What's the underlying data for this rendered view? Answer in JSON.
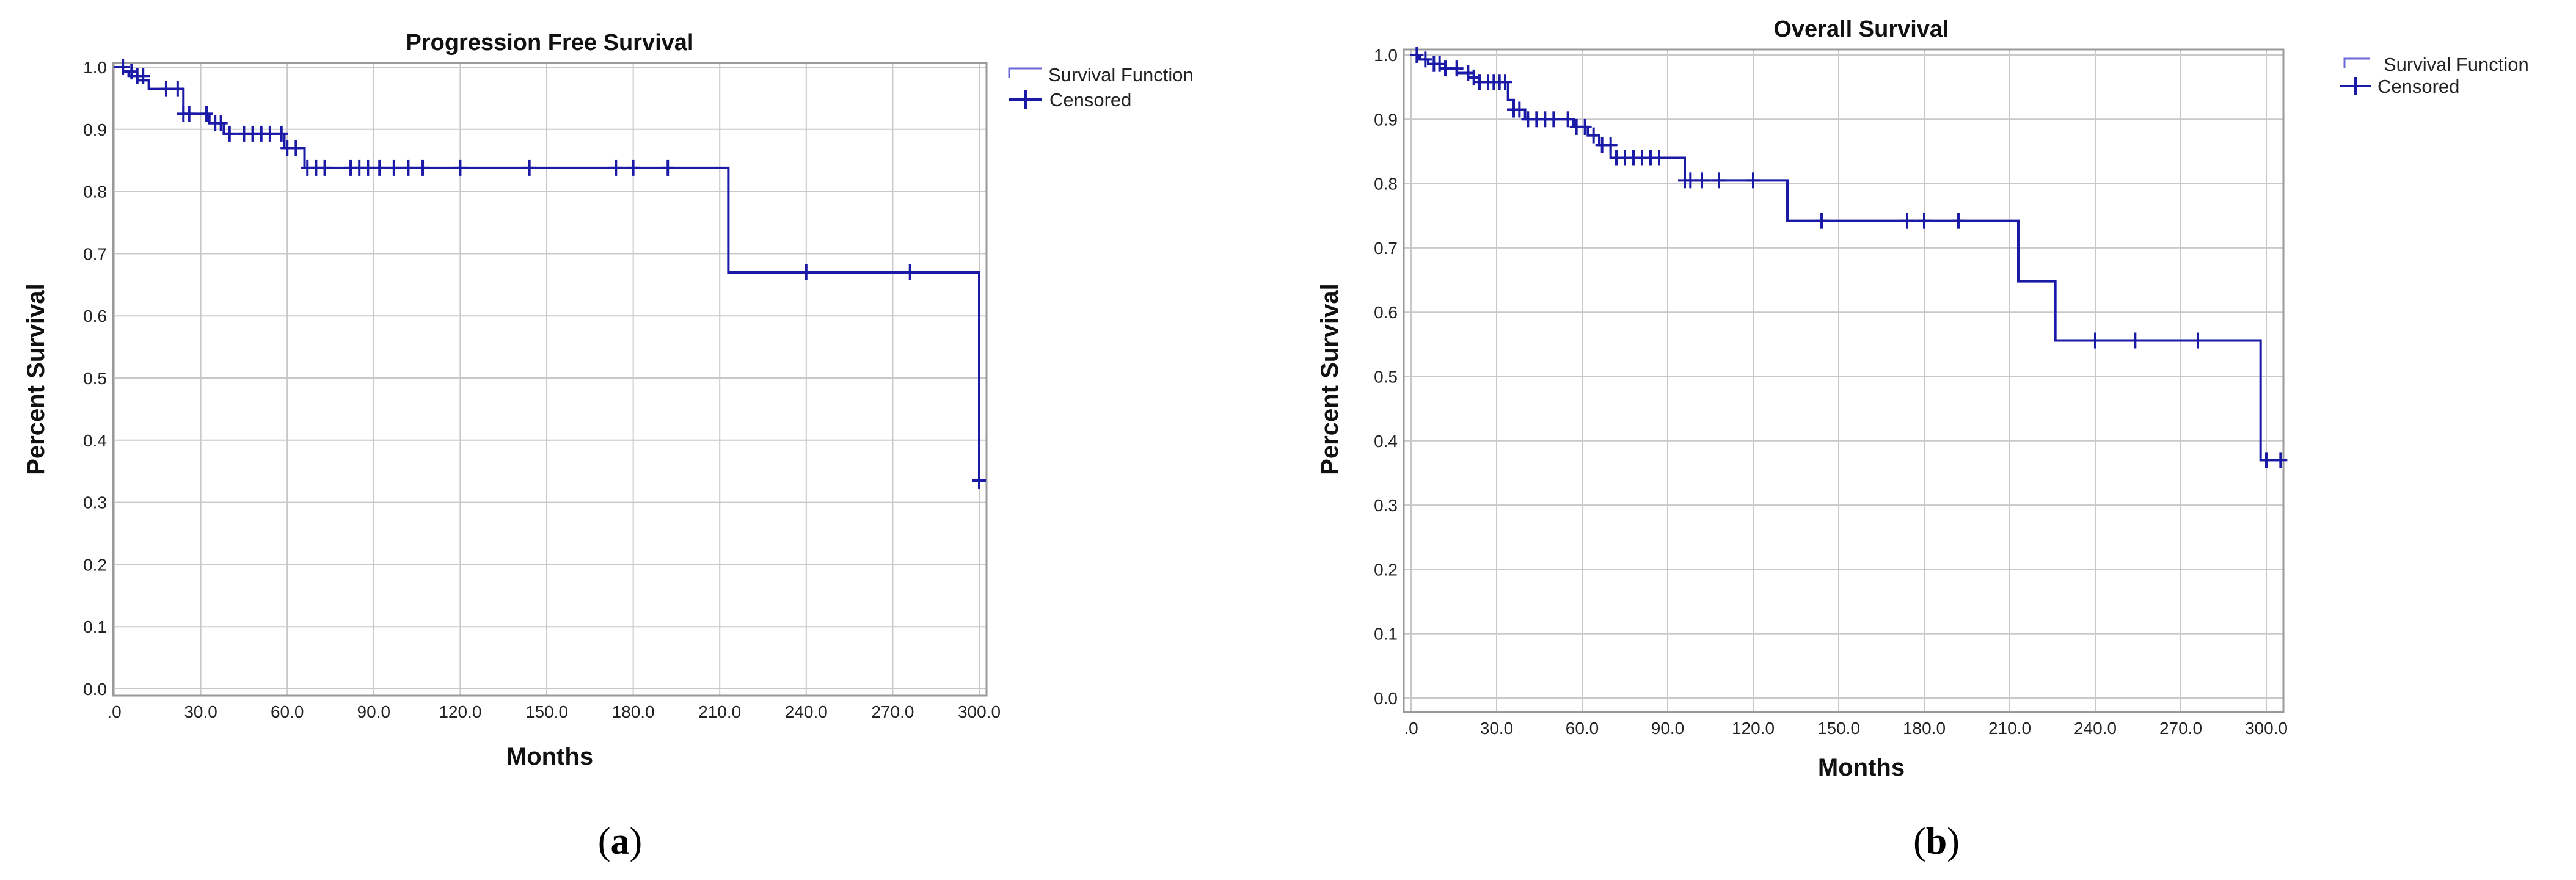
{
  "panels": [
    {
      "label_open": "(",
      "label_letter": "a",
      "label_close": ")"
    },
    {
      "label_open": "(",
      "label_letter": "b",
      "label_close": ")"
    }
  ],
  "colors": {
    "curve": "#1a1aa6",
    "legend_step": "#6a6ad6",
    "grid": "#c8c8c8",
    "frame": "#9a9a9a"
  },
  "chart_data": [
    {
      "type": "line",
      "title": "Progression Free Survival",
      "xlabel": "Months",
      "ylabel": "Percent Survival",
      "xlim": [
        0,
        300
      ],
      "ylim": [
        0,
        1.0
      ],
      "x_ticks": [
        ".0",
        "30.0",
        "60.0",
        "90.0",
        "120.0",
        "150.0",
        "180.0",
        "210.0",
        "240.0",
        "270.0",
        "300.0"
      ],
      "y_ticks": [
        "0.0",
        "0.1",
        "0.2",
        "0.3",
        "0.4",
        "0.5",
        "0.6",
        "0.7",
        "0.8",
        "0.9",
        "1.0"
      ],
      "grid": true,
      "legend_position": "top-right",
      "series": [
        {
          "name": "Survival Function",
          "style": "step",
          "x": [
            0,
            3,
            5,
            8,
            12,
            24,
            33,
            38,
            59,
            66,
            213,
            300
          ],
          "y": [
            1.0,
            0.993,
            0.986,
            0.979,
            0.965,
            0.925,
            0.91,
            0.893,
            0.87,
            0.838,
            0.67,
            0.335
          ]
        },
        {
          "name": "Censored",
          "style": "markers",
          "x": [
            3,
            6,
            8,
            10,
            18,
            22,
            24,
            26,
            32,
            35,
            37,
            40,
            45,
            48,
            51,
            54,
            58,
            60,
            63,
            67,
            70,
            73,
            82,
            85,
            88,
            92,
            97,
            102,
            107,
            120,
            144,
            174,
            180,
            192,
            240,
            276,
            300
          ],
          "y": [
            1.0,
            0.993,
            0.986,
            0.986,
            0.965,
            0.965,
            0.925,
            0.925,
            0.925,
            0.91,
            0.91,
            0.893,
            0.893,
            0.893,
            0.893,
            0.893,
            0.893,
            0.87,
            0.87,
            0.838,
            0.838,
            0.838,
            0.838,
            0.838,
            0.838,
            0.838,
            0.838,
            0.838,
            0.838,
            0.838,
            0.838,
            0.838,
            0.838,
            0.838,
            0.67,
            0.67,
            0.335
          ]
        }
      ]
    },
    {
      "type": "line",
      "title": "Overall Survival",
      "xlabel": "Months",
      "ylabel": "Percent Survival",
      "xlim": [
        0,
        300
      ],
      "ylim": [
        0,
        1.0
      ],
      "x_ticks": [
        ".0",
        "30.0",
        "60.0",
        "90.0",
        "120.0",
        "150.0",
        "180.0",
        "210.0",
        "240.0",
        "270.0",
        "300.0"
      ],
      "y_ticks": [
        "0.0",
        "0.1",
        "0.2",
        "0.3",
        "0.4",
        "0.5",
        "0.6",
        "0.7",
        "0.8",
        "0.9",
        "1.0"
      ],
      "grid": true,
      "legend_position": "top-right",
      "series": [
        {
          "name": "Survival Function",
          "style": "step",
          "x": [
            0,
            3,
            6,
            10,
            16,
            20,
            24,
            34,
            36,
            40,
            57,
            62,
            66,
            70,
            96,
            132,
            213,
            226,
            298,
            305
          ],
          "y": [
            1.0,
            0.993,
            0.986,
            0.979,
            0.972,
            0.965,
            0.958,
            0.93,
            0.915,
            0.9,
            0.888,
            0.875,
            0.86,
            0.84,
            0.805,
            0.742,
            0.648,
            0.556,
            0.37,
            0.37
          ]
        },
        {
          "name": "Censored",
          "style": "markers",
          "x": [
            2,
            5,
            8,
            10,
            12,
            16,
            20,
            22,
            24,
            27,
            29,
            31,
            33,
            36,
            38,
            41,
            44,
            47,
            50,
            55,
            58,
            61,
            64,
            67,
            70,
            72,
            75,
            78,
            81,
            84,
            87,
            96,
            98,
            102,
            108,
            120,
            144,
            174,
            180,
            192,
            240,
            254,
            276,
            300,
            305
          ],
          "y": [
            1.0,
            0.993,
            0.986,
            0.986,
            0.979,
            0.979,
            0.972,
            0.965,
            0.958,
            0.958,
            0.958,
            0.958,
            0.958,
            0.915,
            0.915,
            0.9,
            0.9,
            0.9,
            0.9,
            0.9,
            0.888,
            0.888,
            0.875,
            0.86,
            0.86,
            0.84,
            0.84,
            0.84,
            0.84,
            0.84,
            0.84,
            0.805,
            0.805,
            0.805,
            0.805,
            0.805,
            0.742,
            0.742,
            0.742,
            0.742,
            0.556,
            0.556,
            0.556,
            0.37,
            0.37
          ]
        }
      ]
    }
  ]
}
